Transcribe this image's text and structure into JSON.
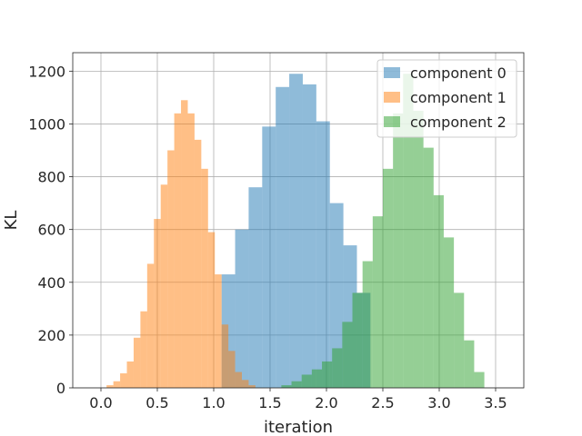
{
  "chart_data": {
    "type": "histogram",
    "title": "",
    "xlabel": "iteration",
    "ylabel": "KL",
    "xlim": [
      -0.25,
      3.75
    ],
    "ylim": [
      0,
      1270
    ],
    "xticks": [
      "0.0",
      "0.5",
      "1.0",
      "1.5",
      "2.0",
      "2.5",
      "3.0",
      "3.5"
    ],
    "yticks": [
      "0",
      "200",
      "400",
      "600",
      "800",
      "1000",
      "1200"
    ],
    "grid": true,
    "legend_position": "top-right",
    "series": [
      {
        "name": "component 0",
        "color": "#1f77b4",
        "alpha": 0.5,
        "bin_edges": [
          1.07,
          1.19,
          1.31,
          1.43,
          1.55,
          1.67,
          1.79,
          1.91,
          2.03,
          2.15,
          2.27,
          2.39
        ],
        "values": [
          430,
          600,
          760,
          990,
          1140,
          1190,
          1150,
          1010,
          700,
          540,
          360
        ]
      },
      {
        "name": "component 1",
        "color": "#ff7f0e",
        "alpha": 0.5,
        "bin_edges": [
          0.05,
          0.11,
          0.17,
          0.23,
          0.29,
          0.35,
          0.41,
          0.47,
          0.53,
          0.59,
          0.65,
          0.71,
          0.77,
          0.83,
          0.89,
          0.95,
          1.01,
          1.07,
          1.13,
          1.19,
          1.25,
          1.31,
          1.37
        ],
        "values": [
          10,
          25,
          55,
          100,
          190,
          290,
          470,
          640,
          770,
          900,
          1040,
          1090,
          1040,
          940,
          830,
          590,
          430,
          240,
          140,
          60,
          30,
          10
        ]
      },
      {
        "name": "component 2",
        "color": "#2ca02c",
        "alpha": 0.5,
        "bin_edges": [
          1.6,
          1.69,
          1.78,
          1.87,
          1.96,
          2.05,
          2.14,
          2.23,
          2.32,
          2.41,
          2.5,
          2.59,
          2.68,
          2.77,
          2.86,
          2.95,
          3.04,
          3.13,
          3.22,
          3.31,
          3.4
        ],
        "values": [
          10,
          25,
          50,
          70,
          100,
          150,
          250,
          360,
          480,
          650,
          830,
          1040,
          1190,
          1050,
          910,
          730,
          570,
          360,
          180,
          60
        ]
      }
    ]
  }
}
